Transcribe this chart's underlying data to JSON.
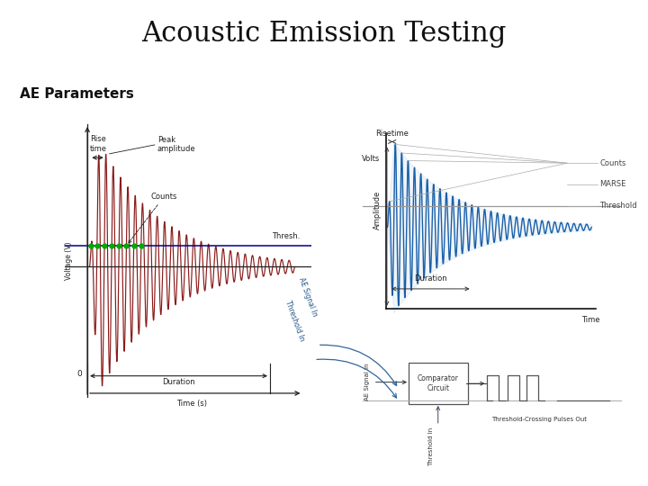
{
  "title": "Acoustic Emission Testing",
  "subtitle": "AE Parameters",
  "bg_color": "#ffffff",
  "title_fontsize": 22,
  "subtitle_fontsize": 11,
  "left_labels": {
    "risetime": "Rise\ntime",
    "peak_amplitude": "Peak\namplitude",
    "counts": "Counts",
    "threshold": "Thresh.",
    "duration": "Duration",
    "voltage": "Voltage (V)",
    "time": "Time (s)",
    "zero": "0"
  },
  "right_labels": {
    "risetime": "Risetime",
    "amplitude": "Amplitude",
    "counts": "Counts",
    "marse": "MARSE",
    "threshold": "Threshold",
    "time": "Time",
    "volts": "Volts",
    "duration": "Duration",
    "comparator": "Comparator\nCircuit",
    "ae_signal": "AE Signal In",
    "threshold_in": "Threshold In",
    "pulses_out": "Threshold-Crossing Pulses Out"
  },
  "wave_color_left": "#8b1a1a",
  "wave_color_right": "#1a5fa8",
  "threshold_color_left": "#00008b",
  "threshold_color_right": "#999999",
  "dot_color": "#00aa00",
  "fill_color_right": "#a8c8e8"
}
